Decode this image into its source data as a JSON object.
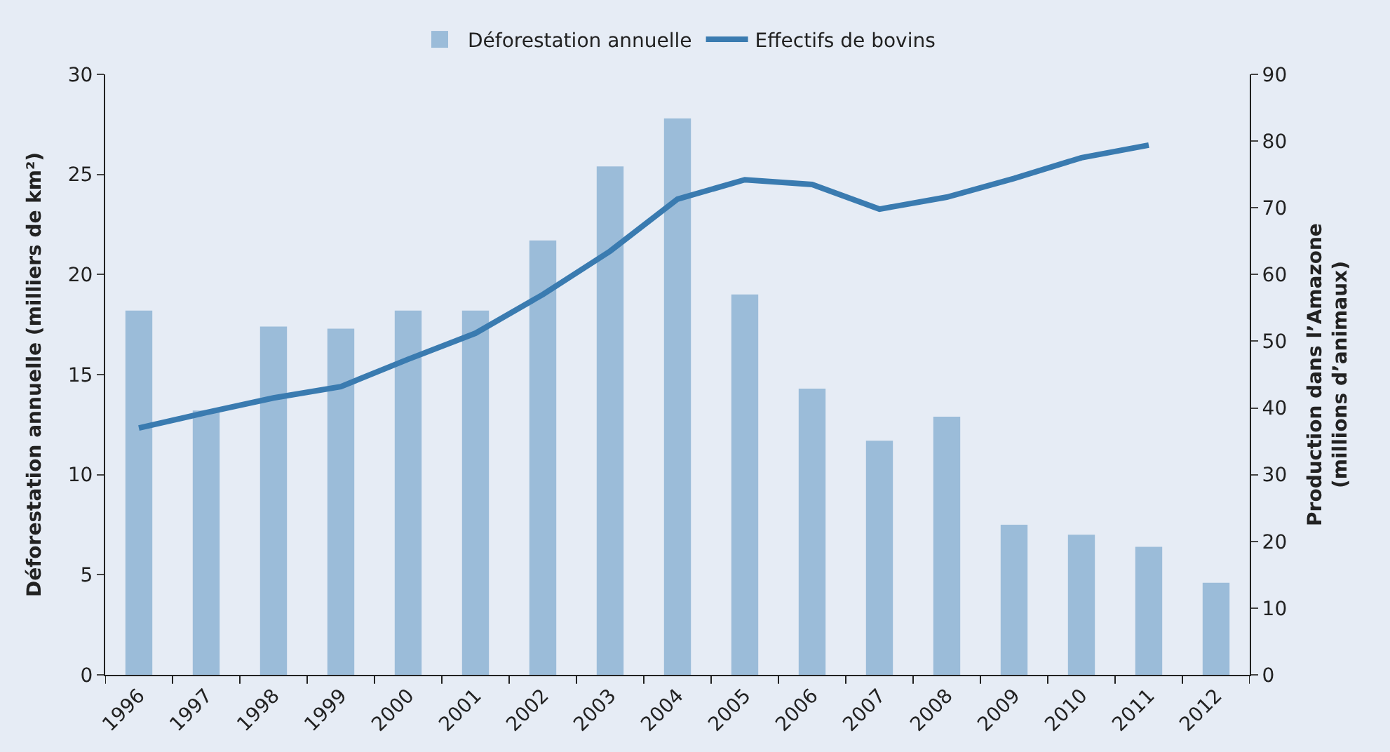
{
  "chart_data": {
    "type": "bar",
    "categories": [
      "1996",
      "1997",
      "1998",
      "1999",
      "2000",
      "2001",
      "2002",
      "2003",
      "2004",
      "2005",
      "2006",
      "2007",
      "2008",
      "2009",
      "2010",
      "2011",
      "2012"
    ],
    "ylabel": "Déforestation annuelle (milliers de km²)",
    "y2label": "Production dans l’Amazone (millions d’animaux)",
    "series": [
      {
        "name": "Déforestation annuelle",
        "color": "#9bbcd9",
        "values": [
          18.2,
          13.2,
          17.4,
          17.3,
          18.2,
          18.2,
          21.7,
          25.4,
          27.8,
          19.0,
          14.3,
          11.7,
          12.9,
          7.5,
          7.0,
          6.4,
          4.6
        ]
      },
      {
        "name": "Effectifs de bovins",
        "type": "line",
        "axis": "y2",
        "color": "#3a7bb0",
        "values": [
          37.0,
          39.3,
          41.5,
          43.2,
          47.3,
          51.2,
          57.0,
          63.5,
          71.3,
          74.2,
          73.5,
          69.8,
          71.6,
          74.4,
          77.5,
          79.4,
          null
        ]
      }
    ],
    "ylim": [
      0,
      30
    ],
    "yticks": [
      0,
      5,
      10,
      15,
      20,
      25,
      30
    ],
    "y2lim": [
      0,
      90
    ],
    "y2ticks": [
      0,
      10,
      20,
      30,
      40,
      50,
      60,
      70,
      80,
      90
    ],
    "grid": false,
    "legend": "top",
    "marker": "none",
    "line_style": "solid"
  }
}
